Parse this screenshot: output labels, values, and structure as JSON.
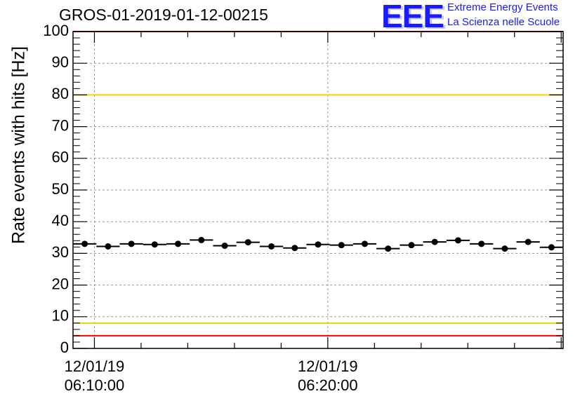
{
  "title": "GROS-01-2019-01-12-00215",
  "logo": {
    "mark": "EEE",
    "line1": "Extreme Energy Events",
    "line2": "La Scienza nelle Scuole",
    "color": "#1a1aff"
  },
  "chart_data": {
    "type": "scatter",
    "title": "GROS-01-2019-01-12-00215",
    "ylabel": "Rate events with hits [Hz]",
    "xlabel": "",
    "ylim": [
      0,
      100
    ],
    "y_ticks": [
      0,
      10,
      20,
      30,
      40,
      50,
      60,
      70,
      80,
      90,
      100
    ],
    "x_range": [
      "12/01/19 06:09:05",
      "12/01/19 06:30:05"
    ],
    "x_tick_labels": [
      {
        "date": "12/01/19",
        "time": "06:10:00"
      },
      {
        "date": "12/01/19",
        "time": "06:20:00"
      }
    ],
    "grid": true,
    "reference_lines": [
      {
        "y": 100,
        "color": "#ff0000"
      },
      {
        "y": 80,
        "color": "#ffcc00"
      },
      {
        "y": 8,
        "color": "#ffcc00"
      },
      {
        "y": 4,
        "color": "#ff0000"
      }
    ],
    "series": [
      {
        "marker": "circle",
        "color": "#000000",
        "bin_width": "00:01:00",
        "x": [
          "06:09:35",
          "06:10:35",
          "06:11:35",
          "06:12:35",
          "06:13:35",
          "06:14:35",
          "06:15:35",
          "06:16:35",
          "06:17:35",
          "06:18:35",
          "06:19:35",
          "06:20:35",
          "06:21:35",
          "06:22:35",
          "06:23:35",
          "06:24:35",
          "06:25:35",
          "06:26:35",
          "06:27:35",
          "06:28:35",
          "06:29:35"
        ],
        "values": [
          33.0,
          32.2,
          33.0,
          32.8,
          33.0,
          34.2,
          32.4,
          33.5,
          32.2,
          31.7,
          32.8,
          32.6,
          33.0,
          31.5,
          32.6,
          33.6,
          34.1,
          33.0,
          31.5,
          33.6,
          31.9
        ]
      }
    ]
  }
}
